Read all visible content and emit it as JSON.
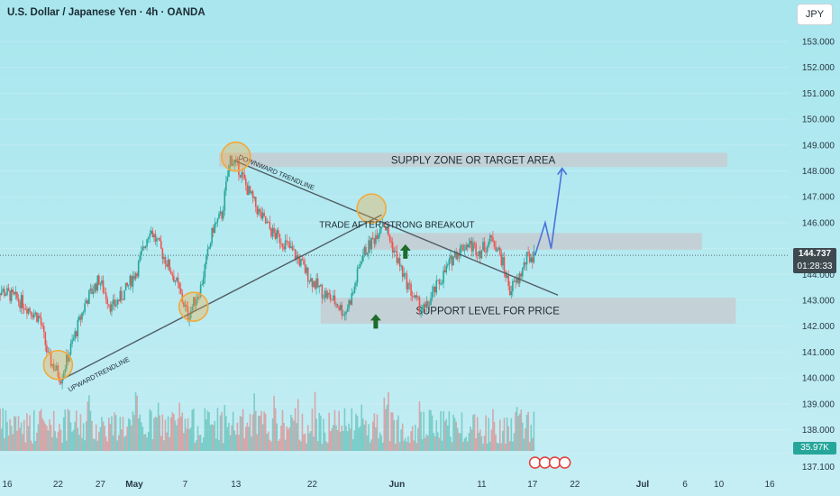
{
  "header": {
    "title": "U.S. Dollar / Japanese Yen · 4h · OANDA",
    "currency_button": "JPY"
  },
  "price_labels": {
    "last_price": "144.737",
    "countdown": "01:28:33",
    "volume": "35.97K"
  },
  "chart_data": {
    "type": "candlestick",
    "symbol": "USDJPY",
    "interval": "4h",
    "ylim": [
      137.1,
      153.6
    ],
    "y_ticks": [
      {
        "value": 153.0,
        "label": "153.000"
      },
      {
        "value": 152.0,
        "label": "152.000"
      },
      {
        "value": 151.0,
        "label": "151.000"
      },
      {
        "value": 150.0,
        "label": "150.000"
      },
      {
        "value": 149.0,
        "label": "149.000"
      },
      {
        "value": 148.0,
        "label": "148.000"
      },
      {
        "value": 147.0,
        "label": "147.000"
      },
      {
        "value": 146.0,
        "label": "146.000"
      },
      {
        "value": 145.0,
        "label": "145.000"
      },
      {
        "value": 144.0,
        "label": "144.000"
      },
      {
        "value": 143.0,
        "label": "143.000"
      },
      {
        "value": 142.0,
        "label": "142.000"
      },
      {
        "value": 141.0,
        "label": "141.000"
      },
      {
        "value": 140.0,
        "label": "140.000"
      },
      {
        "value": 139.0,
        "label": "139.000"
      },
      {
        "value": 138.0,
        "label": "138.000"
      },
      {
        "value": 137.1,
        "label": "137.100"
      }
    ],
    "x_ticks": [
      {
        "label": "16",
        "day": 0
      },
      {
        "label": "22",
        "day": 6
      },
      {
        "label": "27",
        "day": 11
      },
      {
        "label": "May",
        "day": 15
      },
      {
        "label": "7",
        "day": 21
      },
      {
        "label": "13",
        "day": 27
      },
      {
        "label": "22",
        "day": 36
      },
      {
        "label": "Jun",
        "day": 46
      },
      {
        "label": "11",
        "day": 56
      },
      {
        "label": "17",
        "day": 62
      },
      {
        "label": "22",
        "day": 67
      },
      {
        "label": "Jul",
        "day": 75
      },
      {
        "label": "6",
        "day": 80
      },
      {
        "label": "10",
        "day": 84
      },
      {
        "label": "16",
        "day": 90
      }
    ],
    "price_path": [
      {
        "day": -1.5,
        "price": 143.5
      },
      {
        "day": 0,
        "price": 143.3
      },
      {
        "day": 2,
        "price": 142.9
      },
      {
        "day": 4,
        "price": 142.3
      },
      {
        "day": 5,
        "price": 140.8
      },
      {
        "day": 6.5,
        "price": 140.0
      },
      {
        "day": 8,
        "price": 141.5
      },
      {
        "day": 9.5,
        "price": 143.0
      },
      {
        "day": 11,
        "price": 143.8
      },
      {
        "day": 12.5,
        "price": 142.7
      },
      {
        "day": 14,
        "price": 143.3
      },
      {
        "day": 15.5,
        "price": 144.2
      },
      {
        "day": 17,
        "price": 145.8
      },
      {
        "day": 18.5,
        "price": 144.8
      },
      {
        "day": 20,
        "price": 143.8
      },
      {
        "day": 21.5,
        "price": 142.4
      },
      {
        "day": 23,
        "price": 143.5
      },
      {
        "day": 24.5,
        "price": 145.8
      },
      {
        "day": 25.5,
        "price": 146.3
      },
      {
        "day": 26.5,
        "price": 148.5
      },
      {
        "day": 27.5,
        "price": 148.1
      },
      {
        "day": 28.5,
        "price": 147.3
      },
      {
        "day": 30,
        "price": 146.3
      },
      {
        "day": 31.5,
        "price": 145.6
      },
      {
        "day": 33,
        "price": 145.2
      },
      {
        "day": 34.5,
        "price": 144.6
      },
      {
        "day": 36,
        "price": 143.8
      },
      {
        "day": 37.5,
        "price": 143.3
      },
      {
        "day": 39,
        "price": 142.9
      },
      {
        "day": 40,
        "price": 142.5
      },
      {
        "day": 41,
        "price": 143.3
      },
      {
        "day": 42,
        "price": 144.7
      },
      {
        "day": 43.5,
        "price": 145.4
      },
      {
        "day": 44.5,
        "price": 146.1
      },
      {
        "day": 45.5,
        "price": 145.2
      },
      {
        "day": 47,
        "price": 143.9
      },
      {
        "day": 48.5,
        "price": 142.9
      },
      {
        "day": 49.5,
        "price": 142.6
      },
      {
        "day": 50.5,
        "price": 143.3
      },
      {
        "day": 51.5,
        "price": 143.9
      },
      {
        "day": 53,
        "price": 144.8
      },
      {
        "day": 54.5,
        "price": 145.2
      },
      {
        "day": 56,
        "price": 144.9
      },
      {
        "day": 57.5,
        "price": 145.4
      },
      {
        "day": 58.5,
        "price": 144.6
      },
      {
        "day": 59.5,
        "price": 143.4
      },
      {
        "day": 60.5,
        "price": 143.8
      },
      {
        "day": 61.5,
        "price": 144.6
      },
      {
        "day": 62.3,
        "price": 144.74
      }
    ],
    "projection": [
      {
        "day": 62.3,
        "price": 144.74
      },
      {
        "day": 63.5,
        "price": 146.0
      },
      {
        "day": 64.2,
        "price": 145.0
      },
      {
        "day": 65.5,
        "price": 148.1
      }
    ],
    "zones": [
      {
        "label": "SUPPLY ZONE OR TARGET AREA",
        "day_start": 25,
        "day_end": 85,
        "price_low": 148.15,
        "price_high": 148.7
      },
      {
        "label": "",
        "day_start": 43,
        "day_end": 82,
        "price_low": 144.95,
        "price_high": 145.6
      },
      {
        "label": "SUPPORT LEVEL FOR PRICE",
        "day_start": 37,
        "day_end": 86,
        "price_low": 142.1,
        "price_high": 143.1
      }
    ],
    "trendlines": [
      {
        "label": "DOWNWARD TRENDLINE",
        "start": {
          "day": 26.8,
          "price": 148.4
        },
        "end": {
          "day": 65,
          "price": 143.2
        }
      },
      {
        "label": "UPWARDTRENDLINE",
        "start": {
          "day": 6.5,
          "price": 139.95
        },
        "end": {
          "day": 44.2,
          "price": 146.3
        }
      }
    ],
    "highlight_points": [
      {
        "day": 6,
        "price": 140.5
      },
      {
        "day": 22,
        "price": 142.75
      },
      {
        "day": 27,
        "price": 148.55
      },
      {
        "day": 43,
        "price": 146.55
      }
    ],
    "arrows": [
      {
        "day": 47,
        "price": 144.85
      },
      {
        "day": 43.5,
        "price": 142.15
      }
    ],
    "annotations": [
      {
        "text": "TRADE AFTER STRONG BREAKOUT",
        "day": 46,
        "price": 145.95
      }
    ],
    "last_price": 144.737,
    "colors": {
      "up": "#26a69a",
      "down": "#ef5350",
      "projection": "#4a72d9",
      "zone": "#c6cdd1",
      "trendline": "#4f5d63",
      "highlight": "#f3a93b",
      "arrow": "#1e6b2a",
      "price_tag": "#3e4a50",
      "volume_tag": "#26a69a"
    }
  }
}
